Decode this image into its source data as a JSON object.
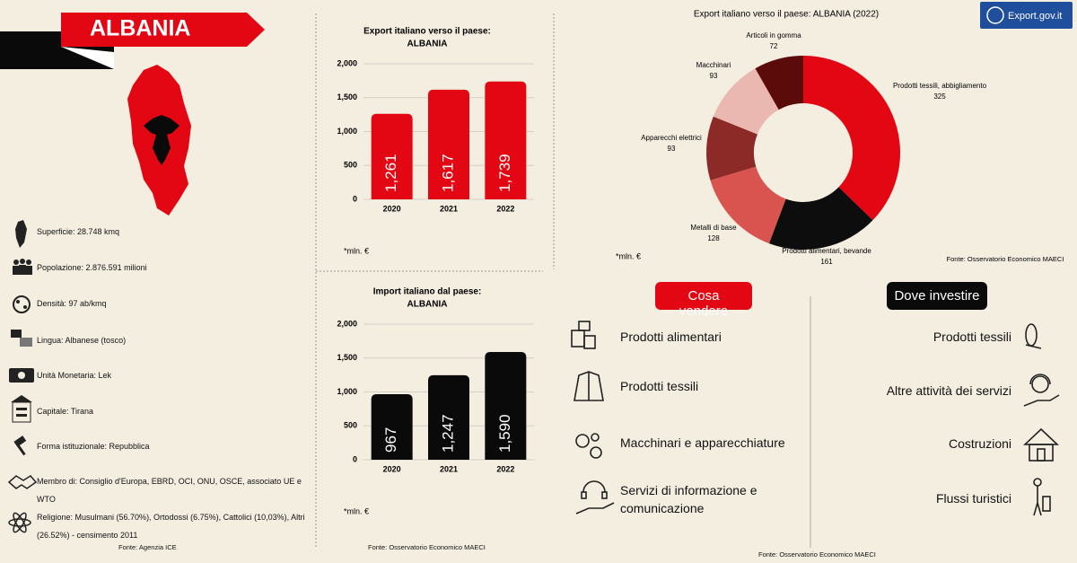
{
  "header": {
    "title": "ALBANIA",
    "logo": "Export.gov.it"
  },
  "facts": [
    "Superficie: 28.748 kmq",
    "Popolazione: 2.876.591 milioni",
    "Densità: 97 ab/kmq",
    "Lingua: Albanese (tosco)",
    "Unità Monetaria: Lek",
    "Capitale: Tirana",
    "Forma istituzionale: Repubblica",
    "Membro di: Consiglio d'Europa, EBRD, OCI, ONU, OSCE, associato UE e WTO",
    "Religione: Musulmani (56.70%), Ortodossi (6.75%), Cattolici (10,03%), Altri (26.52%) - censimento 2011"
  ],
  "facts_source": "Fonte: Agenzia ICE",
  "chart_data": [
    {
      "type": "bar",
      "title": "Export italiano verso il paese:",
      "subtitle": "ALBANIA",
      "categories": [
        "2020",
        "2021",
        "2022"
      ],
      "values": [
        1261,
        1617,
        1739
      ],
      "value_labels": [
        "1,261",
        "1,617",
        "1,739"
      ],
      "color": "#e30613",
      "ylim": [
        0,
        2000
      ],
      "yticks": [
        0,
        500,
        {
          "value": 1000,
          "label": "1,000"
        },
        {
          "value": 1500,
          "label": "1,500"
        },
        {
          "value": 2000,
          "label": "2,000"
        }
      ],
      "grid": true,
      "note": "*mln. €"
    },
    {
      "type": "bar",
      "title": "Import italiano dal paese:",
      "subtitle": "ALBANIA",
      "categories": [
        "2020",
        "2021",
        "2022"
      ],
      "values": [
        967,
        1247,
        1590
      ],
      "value_labels": [
        "967",
        "1,247",
        "1,590"
      ],
      "color": "#0a0a0a",
      "ylim": [
        0,
        2000
      ],
      "yticks": [
        0,
        500,
        {
          "value": 1000,
          "label": "1,000"
        },
        {
          "value": 1500,
          "label": "1,500"
        },
        {
          "value": 2000,
          "label": "2,000"
        }
      ],
      "grid": true,
      "note": "*mln. €"
    },
    {
      "type": "pie",
      "title": "Export italiano verso il paese: ALBANIA (2022)",
      "categories": [
        "Prodotti tessili, abbigliamento",
        "Prodotti alimentari, bevande",
        "Metalli di base",
        "Apparecchi elettrici",
        "Macchinari",
        "Articoli in gomma"
      ],
      "values": [
        325,
        161,
        128,
        93,
        93,
        72
      ],
      "colors": [
        "#e30613",
        "#0d0d0d",
        "#d9534f",
        "#8c2a27",
        "#ebb7b1",
        "#5c0b0b"
      ],
      "note": "*mln. €",
      "source": "Fonte: Osservatorio Economico MAECI"
    }
  ],
  "bar_source": "Fonte: Osservatorio Economico MAECI",
  "cosa_vendere": {
    "title": "Cosa vendere",
    "items": [
      "Prodotti alimentari",
      "Prodotti tessili",
      "Macchinari e apparecchiature",
      "Servizi di informazione e comunicazione"
    ]
  },
  "dove_investire": {
    "title": "Dove investire",
    "items": [
      "Prodotti tessili",
      "Altre attività dei servizi",
      "Costruzioni",
      "Flussi turistici"
    ]
  },
  "source": "Fonte: Osservatorio Economico MAECI"
}
